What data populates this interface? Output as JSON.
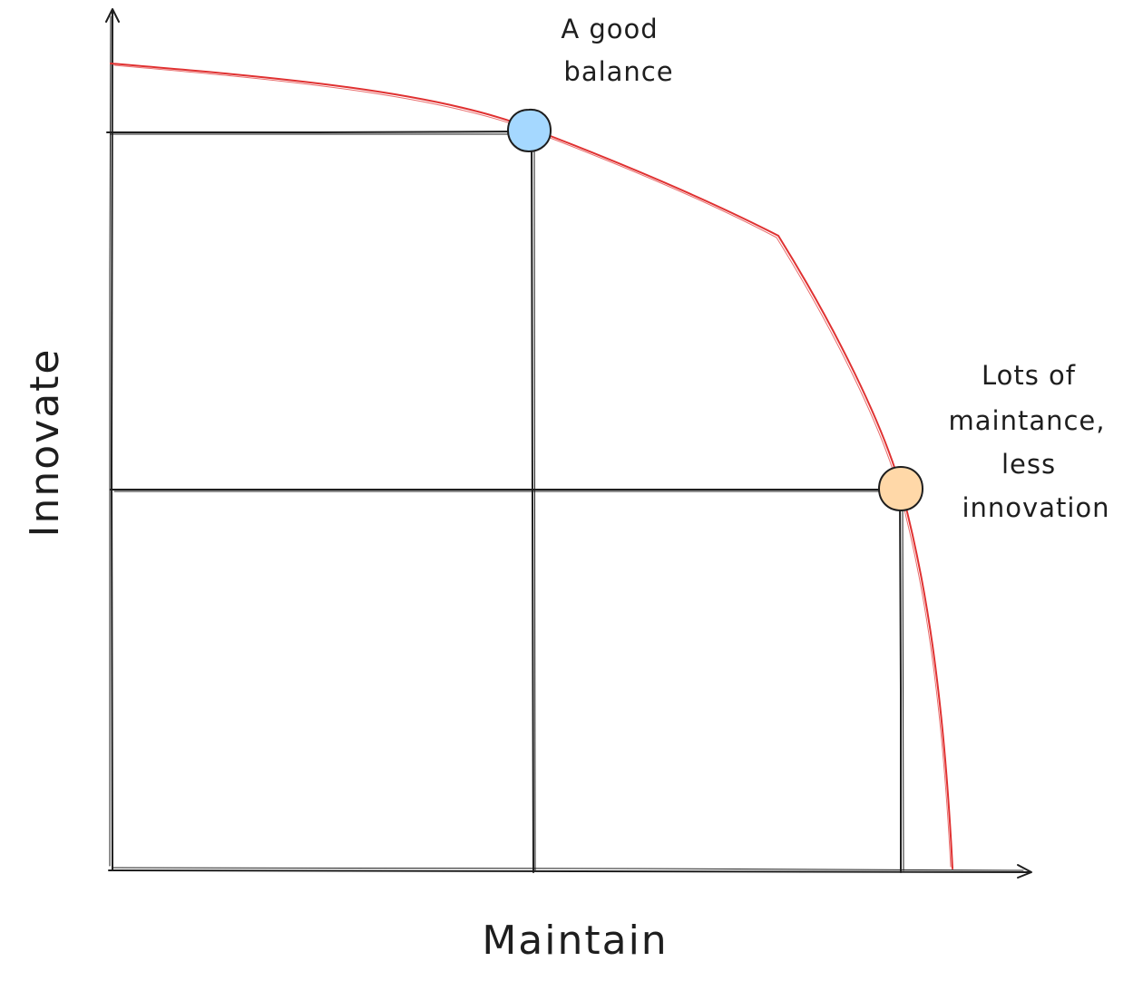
{
  "axes": {
    "x_label": "Maintain",
    "y_label": "Innovate"
  },
  "annotations": {
    "balance": [
      "A good",
      "balance"
    ],
    "maintenance": [
      "Lots of",
      "maintance,",
      "less",
      "innovation"
    ]
  },
  "colors": {
    "ink": "#1e1e1e",
    "curve": "#e03131",
    "balance_point": "#a5d8ff",
    "maintenance_point": "#ffd8a8"
  }
}
